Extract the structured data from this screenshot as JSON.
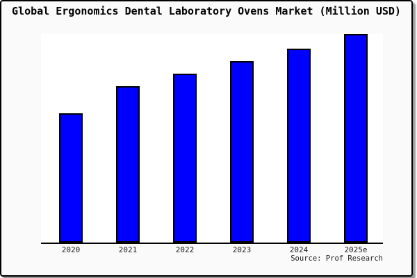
{
  "title": "Global Ergonomics Dental Laboratory Ovens Market (Million USD)",
  "source": "Source: Prof Research",
  "colors": {
    "bar_fill": "#0000FF",
    "bar_border": "#000000",
    "card_background": "#fafafa",
    "plot_background": "#ffffff",
    "axis_line": "#000000",
    "card_border": "#000000",
    "shadow": "#999999"
  },
  "chart_data": {
    "type": "bar",
    "title": "Global Ergonomics Dental Laboratory Ovens Market (Million USD)",
    "categories": [
      "2020",
      "2021",
      "2022",
      "2023",
      "2024",
      "2025e"
    ],
    "values": [
      62,
      75,
      81,
      87,
      93,
      100
    ],
    "xlabel": "",
    "ylabel": "",
    "ylim": [
      0,
      100
    ],
    "y_axis_visible": false,
    "grid": false,
    "legend": false,
    "bar_color": "#0000FF",
    "source": "Source: Prof Research"
  }
}
